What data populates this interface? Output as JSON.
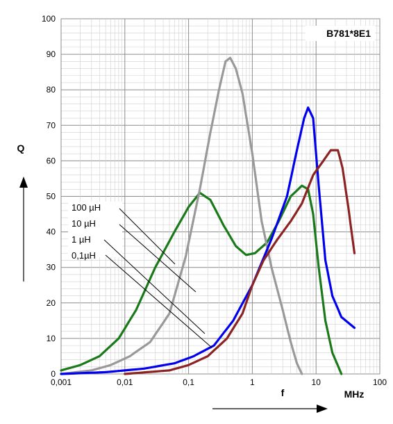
{
  "chart_data": {
    "type": "line",
    "part_number": "B781*8E1",
    "ylabel": "Q",
    "xlabel": "f",
    "xunit": "MHz",
    "x_scale": "log",
    "xlim": [
      0.001,
      100
    ],
    "ylim": [
      0,
      100
    ],
    "grid": true,
    "x_ticks": [
      "0,001",
      "0,01",
      "0,1",
      "1",
      "10",
      "100"
    ],
    "y_ticks": [
      "0",
      "10",
      "20",
      "30",
      "40",
      "50",
      "60",
      "70",
      "80",
      "90",
      "100"
    ],
    "annotations": [
      "100 µH",
      "10 µH",
      "1 µH",
      "0,1µH"
    ],
    "series": [
      {
        "color": "#1a7a1a",
        "points": [
          [
            0.001,
            1
          ],
          [
            0.002,
            2.5
          ],
          [
            0.004,
            5
          ],
          [
            0.008,
            10
          ],
          [
            0.015,
            18
          ],
          [
            0.03,
            30
          ],
          [
            0.06,
            40
          ],
          [
            0.1,
            47
          ],
          [
            0.15,
            51
          ],
          [
            0.22,
            49
          ],
          [
            0.35,
            42
          ],
          [
            0.55,
            36
          ],
          [
            0.8,
            33.5
          ],
          [
            1.1,
            34
          ],
          [
            1.7,
            37
          ],
          [
            2.6,
            43
          ],
          [
            4,
            50
          ],
          [
            6,
            53
          ],
          [
            7.5,
            52
          ],
          [
            9,
            45
          ],
          [
            11,
            30
          ],
          [
            14,
            15
          ],
          [
            18,
            6
          ],
          [
            25,
            0
          ]
        ]
      },
      {
        "color": "#999999",
        "points": [
          [
            0.001,
            0
          ],
          [
            0.003,
            1
          ],
          [
            0.006,
            2.5
          ],
          [
            0.012,
            5
          ],
          [
            0.025,
            9
          ],
          [
            0.05,
            17
          ],
          [
            0.09,
            33
          ],
          [
            0.15,
            52
          ],
          [
            0.22,
            68
          ],
          [
            0.3,
            80
          ],
          [
            0.38,
            88
          ],
          [
            0.45,
            89
          ],
          [
            0.55,
            86
          ],
          [
            0.7,
            79
          ],
          [
            1,
            62
          ],
          [
            1.4,
            43
          ],
          [
            2,
            30
          ],
          [
            3,
            18
          ],
          [
            4,
            9
          ],
          [
            5,
            3
          ],
          [
            6,
            0
          ]
        ]
      },
      {
        "color": "#0000ee",
        "points": [
          [
            0.001,
            0
          ],
          [
            0.005,
            0.5
          ],
          [
            0.02,
            1.5
          ],
          [
            0.06,
            3
          ],
          [
            0.12,
            5
          ],
          [
            0.25,
            8
          ],
          [
            0.5,
            15
          ],
          [
            1,
            25
          ],
          [
            2,
            38
          ],
          [
            3.5,
            50
          ],
          [
            5,
            63
          ],
          [
            6.5,
            72
          ],
          [
            7.5,
            75
          ],
          [
            9,
            72
          ],
          [
            11,
            53
          ],
          [
            14,
            32
          ],
          [
            18,
            22
          ],
          [
            25,
            16
          ],
          [
            40,
            13
          ]
        ]
      },
      {
        "color": "#8b2323",
        "points": [
          [
            0.01,
            0
          ],
          [
            0.05,
            1
          ],
          [
            0.1,
            2.5
          ],
          [
            0.2,
            5
          ],
          [
            0.4,
            10
          ],
          [
            0.7,
            17
          ],
          [
            1,
            25
          ],
          [
            1.5,
            32
          ],
          [
            2.5,
            38
          ],
          [
            4,
            43
          ],
          [
            6,
            48
          ],
          [
            9,
            56
          ],
          [
            13,
            60
          ],
          [
            17,
            63
          ],
          [
            22,
            63
          ],
          [
            26,
            58
          ],
          [
            32,
            47
          ],
          [
            40,
            34
          ]
        ]
      }
    ]
  }
}
